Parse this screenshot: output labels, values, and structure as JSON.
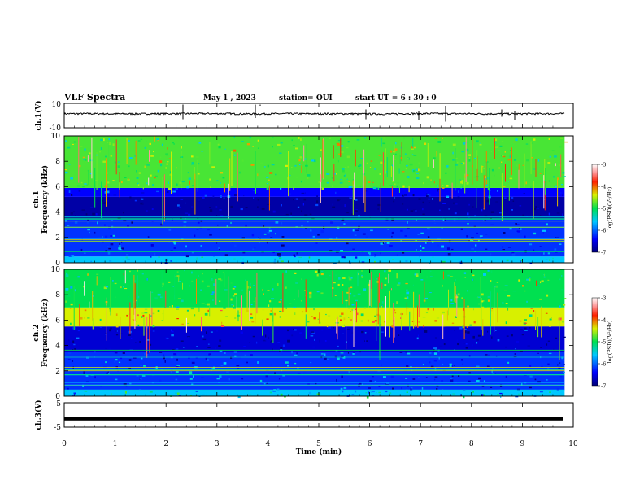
{
  "header": {
    "title": "VLF Spectra",
    "date": "May 1 , 2023",
    "station": "station= OUI",
    "start_ut": "start UT = 6 : 30 : 0"
  },
  "chart_data": [
    {
      "type": "line",
      "panel": "ch1-waveform",
      "ylabel": "ch.1(V)",
      "ylim": [
        -10,
        10
      ],
      "yticks": [
        "10",
        "-10"
      ],
      "xlim": [
        0,
        10
      ],
      "series": [
        {
          "values": [
            1.5,
            1.4,
            1.5,
            1.6,
            1.4,
            1.5,
            1.5,
            1.3,
            1.6,
            1.5,
            1.4,
            1.5
          ]
        }
      ],
      "line_color": "#000000"
    },
    {
      "type": "heatmap",
      "panel": "ch1-spectrogram",
      "ylabel": "ch.1\nFrequency (kHz)",
      "ylim": [
        0,
        10
      ],
      "yticks": [
        "0",
        "2",
        "4",
        "6",
        "8",
        "10"
      ],
      "xlim": [
        0,
        9.83
      ],
      "bands": [
        {
          "from": 0,
          "to": 0.5,
          "level": -5.6
        },
        {
          "from": 0.5,
          "to": 3.5,
          "level": -6.2
        },
        {
          "from": 3.5,
          "to": 5.2,
          "level": -6.8
        },
        {
          "from": 5.2,
          "to": 5.9,
          "level": -6.4
        },
        {
          "from": 5.9,
          "to": 10,
          "level": -4.8
        }
      ],
      "colorbar": {
        "label": "log(PSD)(V²/Hz)",
        "range": [
          -7,
          -3
        ],
        "ticks": [
          "-3",
          "-4",
          "-5",
          "-6",
          "-7"
        ]
      }
    },
    {
      "type": "heatmap",
      "panel": "ch2-spectrogram",
      "ylabel": "ch.2\nFrequency (kHz)",
      "ylim": [
        0,
        10
      ],
      "yticks": [
        "0",
        "2",
        "4",
        "6",
        "8",
        "10"
      ],
      "xlim": [
        0,
        9.83
      ],
      "bands": [
        {
          "from": 0,
          "to": 0.5,
          "level": -5.6
        },
        {
          "from": 0.5,
          "to": 3.5,
          "level": -6.2
        },
        {
          "from": 3.5,
          "to": 5.5,
          "level": -6.6
        },
        {
          "from": 5.5,
          "to": 7.0,
          "level": -4.4
        },
        {
          "from": 7.0,
          "to": 10,
          "level": -5.0
        }
      ],
      "colorbar": {
        "label": "log(PSD)(V²/Hz)",
        "range": [
          -7,
          -3
        ],
        "ticks": [
          "-3",
          "-4",
          "-5",
          "-6",
          "-7"
        ]
      }
    },
    {
      "type": "line",
      "panel": "ch3-waveform",
      "ylabel": "ch.3(V)",
      "ylim": [
        -5,
        5
      ],
      "yticks": [
        "5",
        "-5"
      ],
      "xlim": [
        0,
        10
      ],
      "series": [
        {
          "values": [
            -1.6,
            -1.6,
            -1.6,
            -1.6,
            -1.6,
            -1.6,
            -1.6,
            -1.6,
            -1.6,
            -1.6,
            -1.6
          ]
        }
      ],
      "line_color": "#000000"
    }
  ],
  "xaxis": {
    "label": "Time (min)",
    "ticks": [
      "0",
      "1",
      "2",
      "3",
      "4",
      "5",
      "6",
      "7",
      "8",
      "9",
      "10"
    ],
    "range": [
      0,
      10
    ]
  }
}
